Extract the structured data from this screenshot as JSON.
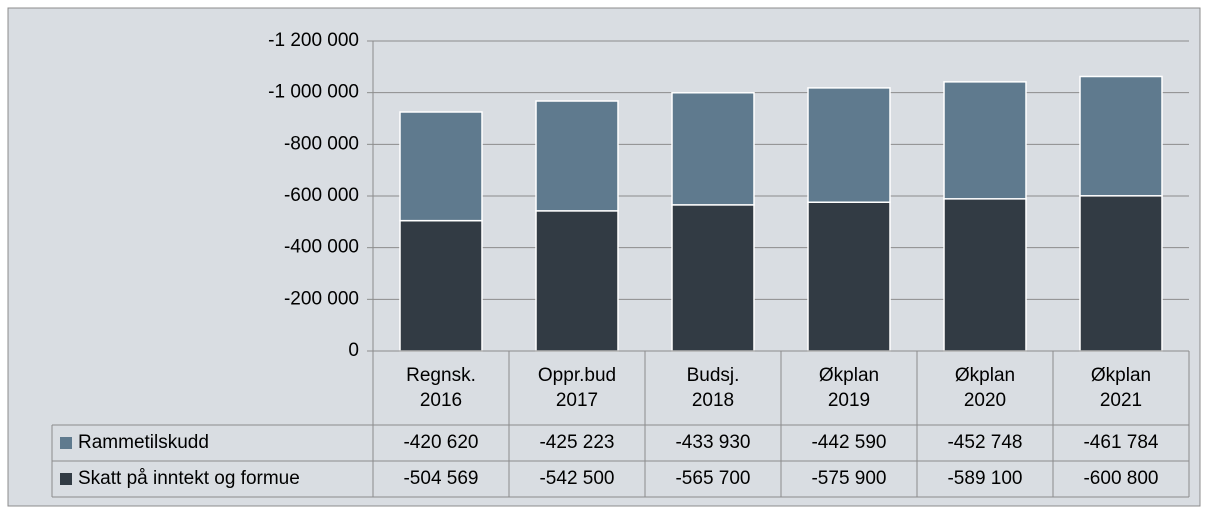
{
  "chart_data": {
    "type": "bar",
    "stacked": true,
    "categories": [
      "Regnsk. 2016",
      "Oppr.bud 2017",
      "Budsj. 2018",
      "Økplan 2019",
      "Økplan 2020",
      "Økplan 2021"
    ],
    "series": [
      {
        "name": "Rammetilskudd",
        "color": "#5f7a8e",
        "values": [
          -420620,
          -425223,
          -433930,
          -442590,
          -452748,
          -461784
        ],
        "value_labels": [
          "-420 620",
          "-425 223",
          "-433 930",
          "-442 590",
          "-452 748",
          "-461 784"
        ]
      },
      {
        "name": "Skatt på inntekt og formue",
        "color": "#323b44",
        "values": [
          -504569,
          -542500,
          -565700,
          -575900,
          -589100,
          -600800
        ],
        "value_labels": [
          "-504 569",
          "-542 500",
          "-565 700",
          "-575 900",
          "-589 100",
          "-600 800"
        ]
      }
    ],
    "ylim": [
      0,
      -1200000
    ],
    "yticks": [
      0,
      {
        "value": -200000,
        "label": "-200 000"
      },
      {
        "value": -400000,
        "label": "-400 000"
      },
      {
        "value": -600000,
        "label": "-600 000"
      },
      {
        "value": -800000,
        "label": "-800 000"
      },
      {
        "value": -1000000,
        "label": "-1 000 000"
      },
      {
        "value": -1200000,
        "label": "-1 200 000"
      }
    ],
    "grid": true,
    "data_table": true
  }
}
